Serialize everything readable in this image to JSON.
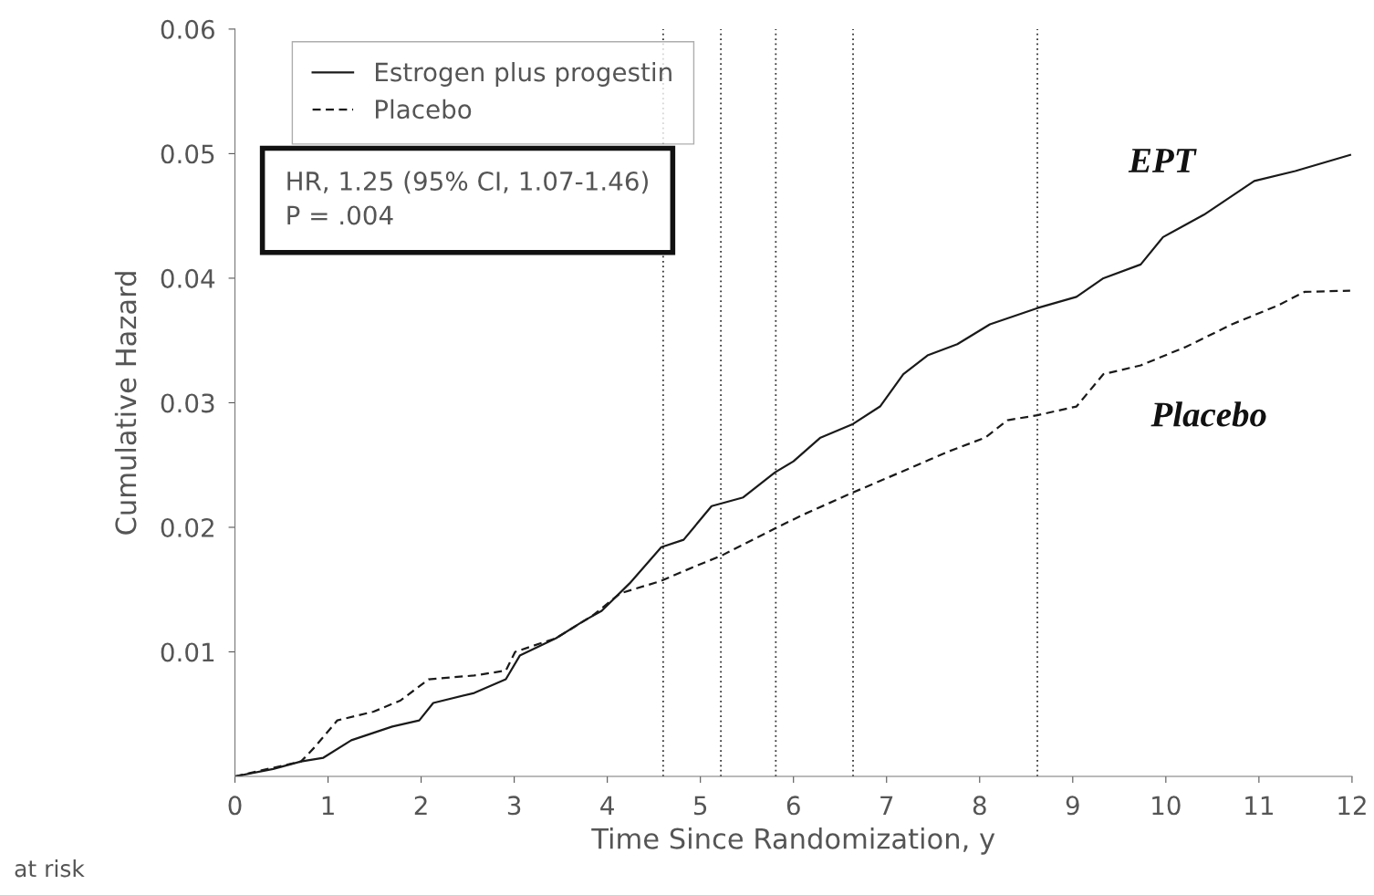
{
  "chart_data": {
    "type": "line",
    "xlabel": "Time Since Randomization, y",
    "ylabel": "Cumulative Hazard",
    "series": [
      {
        "name": "Estrogen plus progestin",
        "color": "#1a1a1a",
        "line_style": "solid",
        "x": [
          0,
          0.41,
          0.71,
          0.95,
          1.25,
          1.69,
          1.98,
          2.13,
          2.57,
          2.91,
          3.06,
          3.45,
          3.75,
          3.94,
          4.24,
          4.58,
          4.82,
          5.12,
          5.46,
          5.8,
          6.0,
          6.29,
          6.64,
          6.93,
          7.18,
          7.44,
          7.76,
          8.11,
          8.62,
          9.04,
          9.33,
          9.73,
          9.97,
          10.41,
          10.95,
          11.39,
          11.98
        ],
        "values": [
          0,
          0.0006,
          0.0012,
          0.0015,
          0.0029,
          0.004,
          0.0045,
          0.0059,
          0.0067,
          0.0078,
          0.0097,
          0.0111,
          0.0125,
          0.0133,
          0.0155,
          0.0184,
          0.019,
          0.0217,
          0.0224,
          0.0244,
          0.0253,
          0.0272,
          0.0283,
          0.0297,
          0.0323,
          0.0338,
          0.0347,
          0.0363,
          0.0376,
          0.0385,
          0.04,
          0.0411,
          0.0433,
          0.0451,
          0.0478,
          0.0486,
          0.0499
        ]
      },
      {
        "name": "Placebo",
        "color": "#1a1a1a",
        "line_style": "dashed",
        "x": [
          0,
          0.71,
          0.85,
          1.1,
          1.49,
          1.78,
          2.08,
          2.57,
          2.91,
          3.01,
          3.45,
          3.84,
          4.14,
          4.58,
          4.92,
          5.22,
          5.8,
          6.1,
          6.64,
          7.08,
          7.67,
          8.06,
          8.3,
          8.62,
          9.04,
          9.33,
          9.73,
          10.22,
          10.71,
          11.2,
          11.49,
          11.98
        ],
        "values": [
          0,
          0.0012,
          0.0023,
          0.0045,
          0.0052,
          0.0061,
          0.0078,
          0.0081,
          0.0085,
          0.01,
          0.0111,
          0.0129,
          0.0147,
          0.0157,
          0.0168,
          0.0177,
          0.0199,
          0.021,
          0.0228,
          0.0242,
          0.0261,
          0.0272,
          0.0286,
          0.029,
          0.0297,
          0.0323,
          0.033,
          0.0345,
          0.0363,
          0.0378,
          0.0389,
          0.039
        ]
      }
    ],
    "xlim": [
      0,
      12
    ],
    "xticks": [
      0,
      1,
      2,
      3,
      4,
      5,
      6,
      7,
      8,
      9,
      10,
      11,
      12
    ],
    "ylim": [
      0,
      0.06
    ],
    "yticks": [
      0.01,
      0.02,
      0.03,
      0.04,
      0.05,
      0.06
    ],
    "ref_lines": [
      {
        "axis": "x",
        "value": 4.6,
        "color": "#333333",
        "line_style": "dotted"
      },
      {
        "axis": "x",
        "value": 5.22,
        "color": "#333333",
        "line_style": "dotted"
      },
      {
        "axis": "x",
        "value": 5.81,
        "color": "#333333",
        "line_style": "dotted"
      },
      {
        "axis": "x",
        "value": 6.64,
        "color": "#333333",
        "line_style": "dotted"
      },
      {
        "axis": "x",
        "value": 8.62,
        "color": "#333333",
        "line_style": "dotted"
      }
    ],
    "annotations": [
      "EPT",
      "Placebo",
      "HR, 1.25 (95% CI, 1.07-1.46)\nP = .004",
      "at risk"
    ],
    "legend": "top left",
    "grid": false
  }
}
